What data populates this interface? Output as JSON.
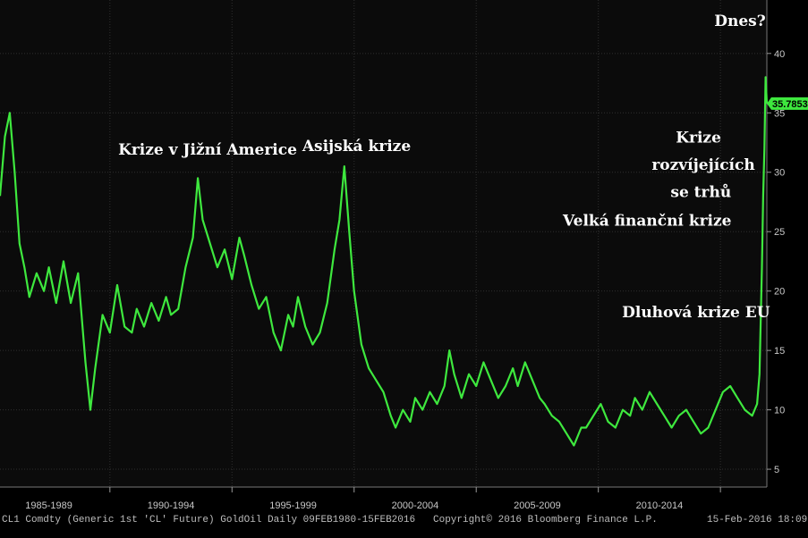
{
  "colors": {
    "background": "#000000",
    "plot_background": "#0b0b0b",
    "grid": "#2f2f2f",
    "line": "#3ee83e",
    "text": "#ffffff",
    "badge": "#3ee83e"
  },
  "footer": {
    "left": "CL1 Comdty (Generic 1st 'CL' Future) GoldOil  Daily 09FEB1980-15FEB2016",
    "center": "Copyright© 2016 Bloomberg Finance L.P.",
    "right": "15-Feb-2016 18:09:47"
  },
  "chart_data": {
    "type": "line",
    "title": "",
    "xlabel": "",
    "ylabel": "",
    "xlim": [
      1985.0,
      2016.4
    ],
    "ylim": [
      3.5,
      44.5
    ],
    "grid": true,
    "y_axis_position": "right",
    "x_tick_labels": [
      "1985-1989",
      "1990-1994",
      "1995-1999",
      "2000-2004",
      "2005-2009",
      "2010-2014"
    ],
    "x_tick_positions": [
      1987.0,
      1992.0,
      1997.0,
      2002.0,
      2007.0,
      2012.0
    ],
    "x_gridlines": [
      1989.5,
      1994.5,
      1999.5,
      2004.5,
      2009.5,
      2014.5
    ],
    "y_ticks": [
      5,
      10,
      15,
      20,
      25,
      30,
      35,
      40
    ],
    "last_value_label": "35.7853",
    "last_value": 35.7853,
    "series": [
      {
        "values": [
          [
            1985.0,
            28.0
          ],
          [
            1985.2,
            33.0
          ],
          [
            1985.4,
            35.0
          ],
          [
            1985.6,
            30.0
          ],
          [
            1985.8,
            24.0
          ],
          [
            1986.0,
            22.0
          ],
          [
            1986.2,
            19.5
          ],
          [
            1986.5,
            21.5
          ],
          [
            1986.8,
            20.0
          ],
          [
            1987.0,
            22.0
          ],
          [
            1987.3,
            19.0
          ],
          [
            1987.6,
            22.5
          ],
          [
            1987.9,
            19.0
          ],
          [
            1988.2,
            21.5
          ],
          [
            1988.5,
            14.0
          ],
          [
            1988.7,
            10.0
          ],
          [
            1988.9,
            13.5
          ],
          [
            1989.2,
            18.0
          ],
          [
            1989.5,
            16.5
          ],
          [
            1989.8,
            20.5
          ],
          [
            1990.1,
            17.0
          ],
          [
            1990.4,
            16.5
          ],
          [
            1990.6,
            18.5
          ],
          [
            1990.9,
            17.0
          ],
          [
            1991.2,
            19.0
          ],
          [
            1991.5,
            17.5
          ],
          [
            1991.8,
            19.5
          ],
          [
            1992.0,
            18.0
          ],
          [
            1992.3,
            18.5
          ],
          [
            1992.6,
            22.0
          ],
          [
            1992.9,
            24.5
          ],
          [
            1993.1,
            29.5
          ],
          [
            1993.3,
            26.0
          ],
          [
            1993.6,
            24.0
          ],
          [
            1993.9,
            22.0
          ],
          [
            1994.2,
            23.5
          ],
          [
            1994.5,
            21.0
          ],
          [
            1994.8,
            24.5
          ],
          [
            1995.0,
            23.0
          ],
          [
            1995.3,
            20.5
          ],
          [
            1995.6,
            18.5
          ],
          [
            1995.9,
            19.5
          ],
          [
            1996.2,
            16.5
          ],
          [
            1996.5,
            15.0
          ],
          [
            1996.8,
            18.0
          ],
          [
            1997.0,
            17.0
          ],
          [
            1997.2,
            19.5
          ],
          [
            1997.5,
            17.0
          ],
          [
            1997.8,
            15.5
          ],
          [
            1998.1,
            16.5
          ],
          [
            1998.4,
            19.0
          ],
          [
            1998.7,
            23.5
          ],
          [
            1998.9,
            26.0
          ],
          [
            1999.1,
            30.5
          ],
          [
            1999.3,
            25.0
          ],
          [
            1999.5,
            20.0
          ],
          [
            1999.8,
            15.5
          ],
          [
            2000.1,
            13.5
          ],
          [
            2000.4,
            12.5
          ],
          [
            2000.7,
            11.5
          ],
          [
            2001.0,
            9.5
          ],
          [
            2001.2,
            8.5
          ],
          [
            2001.5,
            10.0
          ],
          [
            2001.8,
            9.0
          ],
          [
            2002.0,
            11.0
          ],
          [
            2002.3,
            10.0
          ],
          [
            2002.6,
            11.5
          ],
          [
            2002.9,
            10.5
          ],
          [
            2003.2,
            12.0
          ],
          [
            2003.4,
            15.0
          ],
          [
            2003.6,
            13.0
          ],
          [
            2003.9,
            11.0
          ],
          [
            2004.2,
            13.0
          ],
          [
            2004.5,
            12.0
          ],
          [
            2004.8,
            14.0
          ],
          [
            2005.1,
            12.5
          ],
          [
            2005.4,
            11.0
          ],
          [
            2005.7,
            12.0
          ],
          [
            2006.0,
            13.5
          ],
          [
            2006.2,
            12.0
          ],
          [
            2006.5,
            14.0
          ],
          [
            2006.8,
            12.5
          ],
          [
            2007.1,
            11.0
          ],
          [
            2007.3,
            10.5
          ],
          [
            2007.6,
            9.5
          ],
          [
            2007.9,
            9.0
          ],
          [
            2008.2,
            8.0
          ],
          [
            2008.5,
            7.0
          ],
          [
            2008.8,
            8.5
          ],
          [
            2009.0,
            8.5
          ],
          [
            2009.3,
            9.5
          ],
          [
            2009.6,
            10.5
          ],
          [
            2009.9,
            9.0
          ],
          [
            2010.2,
            8.5
          ],
          [
            2010.5,
            10.0
          ],
          [
            2010.8,
            9.5
          ],
          [
            2011.0,
            11.0
          ],
          [
            2011.3,
            10.0
          ],
          [
            2011.6,
            11.5
          ],
          [
            2011.9,
            10.5
          ],
          [
            2012.2,
            9.5
          ],
          [
            2012.5,
            8.5
          ],
          [
            2012.8,
            9.5
          ],
          [
            2013.1,
            10.0
          ],
          [
            2013.4,
            9.0
          ],
          [
            2013.7,
            8.0
          ],
          [
            2014.0,
            8.5
          ],
          [
            2014.3,
            10.0
          ],
          [
            2014.6,
            11.5
          ],
          [
            2014.9,
            12.0
          ],
          [
            2015.2,
            11.0
          ],
          [
            2015.5,
            10.0
          ],
          [
            2015.8,
            9.5
          ],
          [
            2016.0,
            10.5
          ],
          [
            2016.1,
            13.0
          ],
          [
            2016.2,
            22.0
          ],
          [
            2016.25,
            28.0
          ],
          [
            2016.3,
            32.0
          ],
          [
            2016.35,
            38.0
          ],
          [
            2016.4,
            35.7853
          ]
        ]
      }
    ],
    "annotations": [
      {
        "text": "Krize v Jižní Americe",
        "x": 1993.5,
        "y": 31.5,
        "anchor": "middle"
      },
      {
        "text": "Asijská krize",
        "x": 1999.6,
        "y": 31.8,
        "anchor": "middle"
      },
      {
        "text": "Velká finanční krize",
        "x": 2011.5,
        "y": 25.5,
        "anchor": "middle"
      },
      {
        "text": "Dluhová krize EU",
        "x": 2013.5,
        "y": 17.8,
        "anchor": "middle"
      },
      {
        "text": "Krize",
        "x": 2013.6,
        "y": 32.5,
        "anchor": "middle"
      },
      {
        "text": "rozvíjejících",
        "x": 2013.8,
        "y": 30.2,
        "anchor": "middle"
      },
      {
        "text": "se trhů",
        "x": 2013.7,
        "y": 27.9,
        "anchor": "middle"
      },
      {
        "text": "Dnes?",
        "x": 2015.3,
        "y": 42.3,
        "anchor": "middle"
      }
    ]
  }
}
